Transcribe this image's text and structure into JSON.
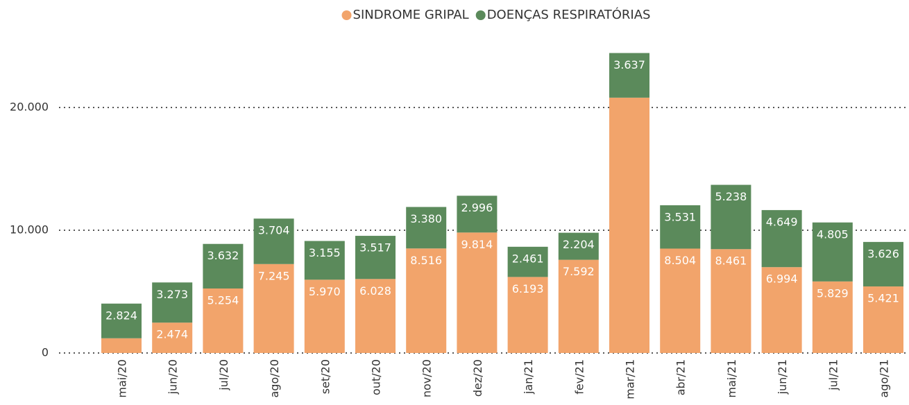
{
  "chart_data": {
    "type": "stacked-bar",
    "categories": [
      "mai/20",
      "jun/20",
      "jul/20",
      "ago/20",
      "set/20",
      "out/20",
      "nov/20",
      "dez/20",
      "jan/21",
      "fev/21",
      "mar/21",
      "abr/21",
      "mai/21",
      "jun/21",
      "jul/21",
      "ago/21"
    ],
    "series": [
      {
        "name": "SINDROME GRIPAL",
        "color": "#f2a46b",
        "values": [
          1200,
          2474,
          5254,
          7245,
          5970,
          6028,
          8516,
          9814,
          6193,
          7592,
          20800,
          8504,
          8461,
          6994,
          5829,
          5421
        ],
        "value_labels": [
          null,
          "2.474",
          "5.254",
          "7.245",
          "5.970",
          "6.028",
          "8.516",
          "9.814",
          "6.193",
          "7.592",
          null,
          "8.504",
          "8.461",
          "6.994",
          "5.829",
          "5.421"
        ]
      },
      {
        "name": "DOENÇAS RESPIRATÓRIAS",
        "color": "#5b8a5b",
        "values": [
          2824,
          3273,
          3632,
          3704,
          3155,
          3517,
          3380,
          2996,
          2461,
          2204,
          3637,
          3531,
          5238,
          4649,
          4805,
          3626
        ],
        "value_labels": [
          "2.824",
          "3.273",
          "3.632",
          "3.704",
          "3.155",
          "3.517",
          "3.380",
          "2.996",
          "2.461",
          "2.204",
          "3.637",
          "3.531",
          "5.238",
          "4.649",
          "4.805",
          "3.626"
        ]
      }
    ],
    "ylim": [
      0,
      25000
    ],
    "yticks": [
      0,
      {
        "value": 10000,
        "label": "10.000"
      },
      {
        "value": 20000,
        "label": "20.000"
      }
    ],
    "grid": true,
    "legend": "top"
  }
}
